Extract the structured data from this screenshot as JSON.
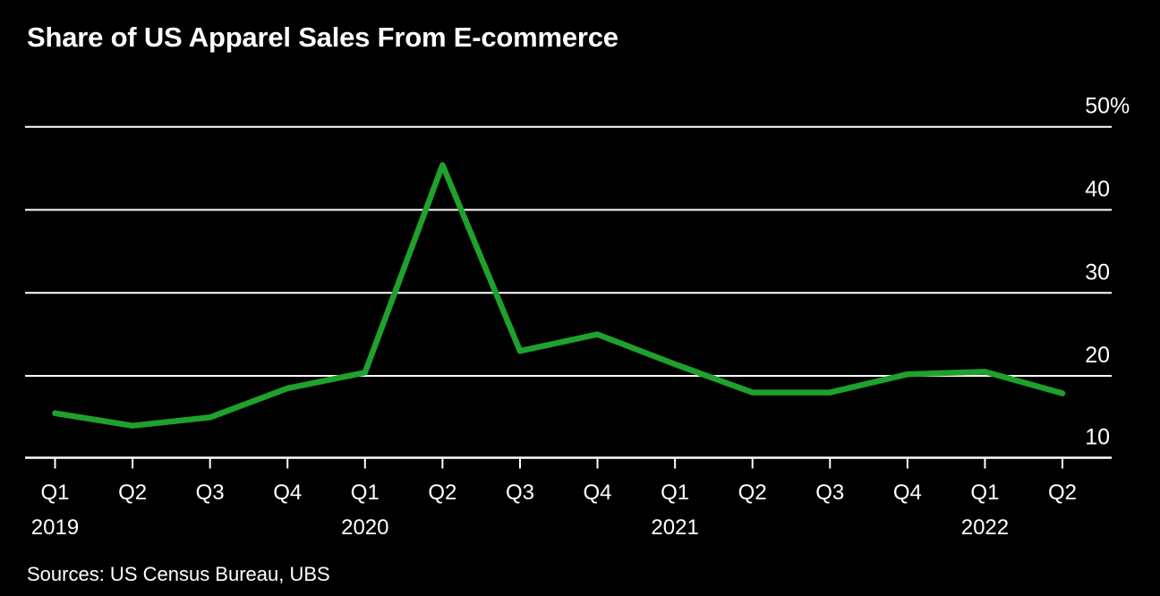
{
  "title": "Share of US Apparel Sales From E-commerce",
  "source": "Sources: US Census Bureau, UBS",
  "colors": {
    "background": "#000000",
    "line": "#1fa12d",
    "axis": "#ffffff",
    "text": "#ffffff"
  },
  "chart_data": {
    "type": "line",
    "title": "Share of US Apparel Sales From E-commerce",
    "series_name": "Share of US apparel sales from e-commerce (%)",
    "categories": [
      "Q1 2019",
      "Q2 2019",
      "Q3 2019",
      "Q4 2019",
      "Q1 2020",
      "Q2 2020",
      "Q3 2020",
      "Q4 2020",
      "Q1 2021",
      "Q2 2021",
      "Q3 2021",
      "Q4 2021",
      "Q1 2022",
      "Q2 2022"
    ],
    "x_tick_labels": [
      "Q1",
      "Q2",
      "Q3",
      "Q4",
      "Q1",
      "Q2",
      "Q3",
      "Q4",
      "Q1",
      "Q2",
      "Q3",
      "Q4",
      "Q1",
      "Q2"
    ],
    "year_labels": [
      {
        "label": "2019",
        "index": 0
      },
      {
        "label": "2020",
        "index": 4
      },
      {
        "label": "2021",
        "index": 8
      },
      {
        "label": "2022",
        "index": 12
      }
    ],
    "values": [
      15.5,
      14.0,
      15.0,
      18.5,
      20.4,
      45.4,
      23.0,
      25.0,
      21.4,
      18.0,
      18.0,
      20.2,
      20.5,
      17.9
    ],
    "y_ticks": [
      10,
      20,
      30,
      40,
      50
    ],
    "y_top_suffix": "%",
    "ylim": [
      10,
      50
    ],
    "xlabel": "",
    "ylabel": "",
    "grid": "horizontal",
    "legend": "none",
    "axis_labels_side": "right"
  }
}
